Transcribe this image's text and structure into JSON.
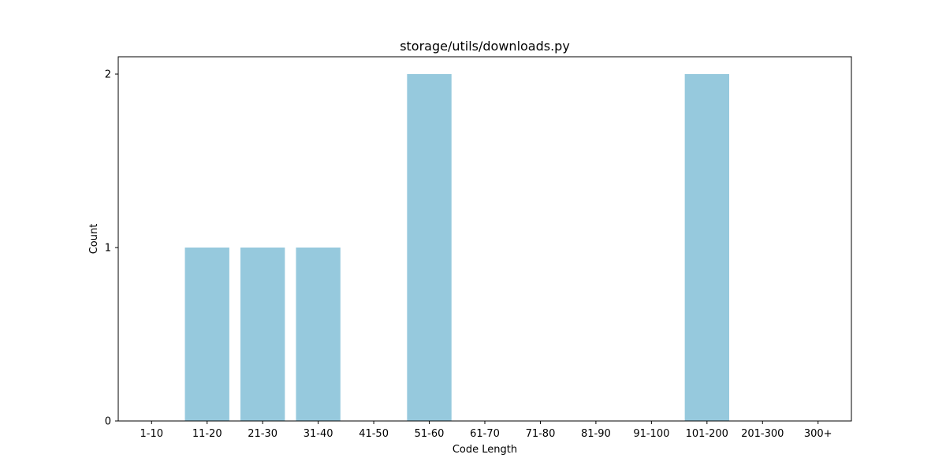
{
  "chart_data": {
    "type": "bar",
    "title": "storage/utils/downloads.py",
    "xlabel": "Code Length",
    "ylabel": "Count",
    "categories": [
      "1-10",
      "11-20",
      "21-30",
      "31-40",
      "41-50",
      "51-60",
      "61-70",
      "71-80",
      "81-90",
      "91-100",
      "101-200",
      "201-300",
      "300+"
    ],
    "values": [
      0,
      1,
      1,
      1,
      0,
      2,
      0,
      0,
      0,
      0,
      2,
      0,
      0
    ],
    "ylim": [
      0,
      2.1
    ],
    "yticks": [
      0,
      1,
      2
    ],
    "bar_color": "#96c9dd",
    "grid": false,
    "legend": "none"
  }
}
